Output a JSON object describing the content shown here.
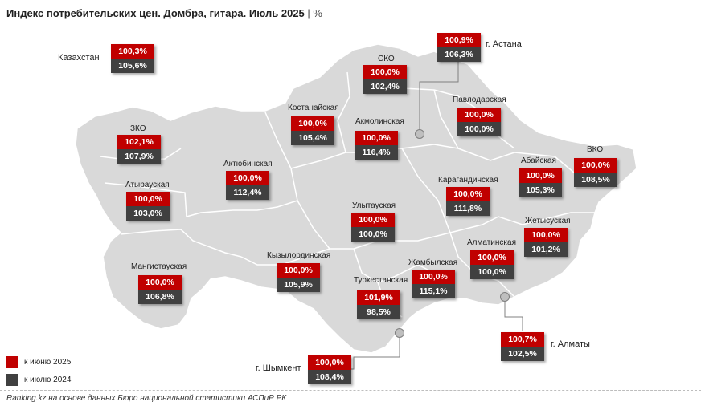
{
  "title": "Индекс потребительских цен. Домбра, гитара. Июль 2025",
  "title_unit": "%",
  "colors": {
    "vs_prev_month": "#c00000",
    "vs_prev_year": "#404040",
    "map_fill": "#d9d9d9",
    "border": "#ffffff"
  },
  "country": {
    "name": "Казахстан",
    "v1": "100,3%",
    "v2": "105,6%"
  },
  "regions": [
    {
      "id": "astana",
      "name": "г. Астана",
      "v1": "100,9%",
      "v2": "106,3%"
    },
    {
      "id": "sko",
      "name": "СКО",
      "v1": "100,0%",
      "v2": "102,4%"
    },
    {
      "id": "kostanay",
      "name": "Костанайская",
      "v1": "100,0%",
      "v2": "105,4%"
    },
    {
      "id": "akmola",
      "name": "Акмолинская",
      "v1": "100,0%",
      "v2": "116,4%"
    },
    {
      "id": "pavlodar",
      "name": "Павлодарская",
      "v1": "100,0%",
      "v2": "100,0%"
    },
    {
      "id": "zko",
      "name": "ЗКО",
      "v1": "102,1%",
      "v2": "107,9%"
    },
    {
      "id": "aktobe",
      "name": "Актюбинская",
      "v1": "100,0%",
      "v2": "112,4%"
    },
    {
      "id": "abay",
      "name": "Абайская",
      "v1": "100,0%",
      "v2": "105,3%"
    },
    {
      "id": "vko",
      "name": "ВКО",
      "v1": "100,0%",
      "v2": "108,5%"
    },
    {
      "id": "atyrau",
      "name": "Атырауская",
      "v1": "100,0%",
      "v2": "103,0%"
    },
    {
      "id": "karaganda",
      "name": "Карагандинская",
      "v1": "100,0%",
      "v2": "111,8%"
    },
    {
      "id": "ulytau",
      "name": "Улытауская",
      "v1": "100,0%",
      "v2": "100,0%"
    },
    {
      "id": "zhetysu",
      "name": "Жетысуская",
      "v1": "100,0%",
      "v2": "101,2%"
    },
    {
      "id": "almaty_reg",
      "name": "Алматинская",
      "v1": "100,0%",
      "v2": "100,0%"
    },
    {
      "id": "kyzylorda",
      "name": "Кызылординская",
      "v1": "100,0%",
      "v2": "105,9%"
    },
    {
      "id": "mangystau",
      "name": "Мангистауская",
      "v1": "100,0%",
      "v2": "106,8%"
    },
    {
      "id": "zhambyl",
      "name": "Жамбылская",
      "v1": "100,0%",
      "v2": "115,1%"
    },
    {
      "id": "turkestan",
      "name": "Туркестанская",
      "v1": "101,9%",
      "v2": "98,5%"
    },
    {
      "id": "almaty_city",
      "name": "г. Алматы",
      "v1": "100,7%",
      "v2": "102,5%"
    },
    {
      "id": "shymkent",
      "name": "г. Шымкент",
      "v1": "100,0%",
      "v2": "108,4%"
    }
  ],
  "legend": [
    {
      "label": "к июню 2025",
      "color": "#c00000"
    },
    {
      "label": "к июлю 2024",
      "color": "#404040"
    }
  ],
  "source": "Ranking.kz на основе данных Бюро национальной статистики АСПиР РК"
}
